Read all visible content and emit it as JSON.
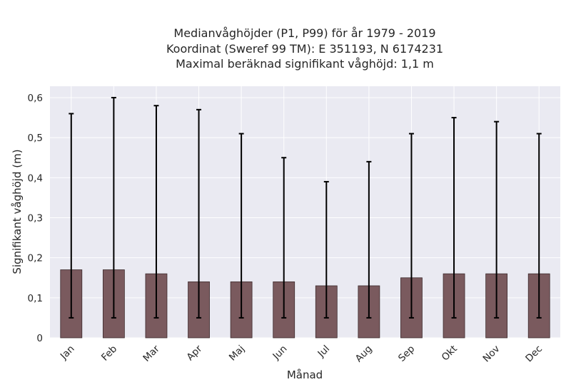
{
  "chart_data": {
    "type": "bar",
    "title_lines": [
      "Medianvåghöjder (P1, P99) för år 1979 - 2019",
      "Koordinat (Sweref 99 TM): E 351193, N 6174231",
      "Maximal beräknad signifikant våghöjd: 1,1 m"
    ],
    "xlabel": "Månad",
    "ylabel": "Signifikant våghöjd (m)",
    "categories": [
      "Jan",
      "Feb",
      "Mar",
      "Apr",
      "Maj",
      "Jun",
      "Jul",
      "Aug",
      "Sep",
      "Okt",
      "Nov",
      "Dec"
    ],
    "values": [
      0.17,
      0.17,
      0.16,
      0.14,
      0.14,
      0.14,
      0.13,
      0.13,
      0.15,
      0.16,
      0.16,
      0.16
    ],
    "error_low": [
      0.05,
      0.05,
      0.05,
      0.05,
      0.05,
      0.05,
      0.05,
      0.05,
      0.05,
      0.05,
      0.05,
      0.05
    ],
    "error_high": [
      0.56,
      0.6,
      0.58,
      0.57,
      0.51,
      0.45,
      0.39,
      0.44,
      0.51,
      0.55,
      0.54,
      0.51
    ],
    "ylim": [
      0,
      0.63
    ],
    "yticks": [
      0,
      0.1,
      0.2,
      0.3,
      0.4,
      0.5,
      0.6
    ],
    "ytick_labels": [
      "0",
      "0,1",
      "0,2",
      "0,3",
      "0,4",
      "0,5",
      "0,6"
    ],
    "grid": true,
    "colors": {
      "bar": "#7a5a5e",
      "bar_edge": "#3d2b2d",
      "error": "#000000",
      "background": "#eaeaf2",
      "grid": "#ffffff"
    }
  }
}
